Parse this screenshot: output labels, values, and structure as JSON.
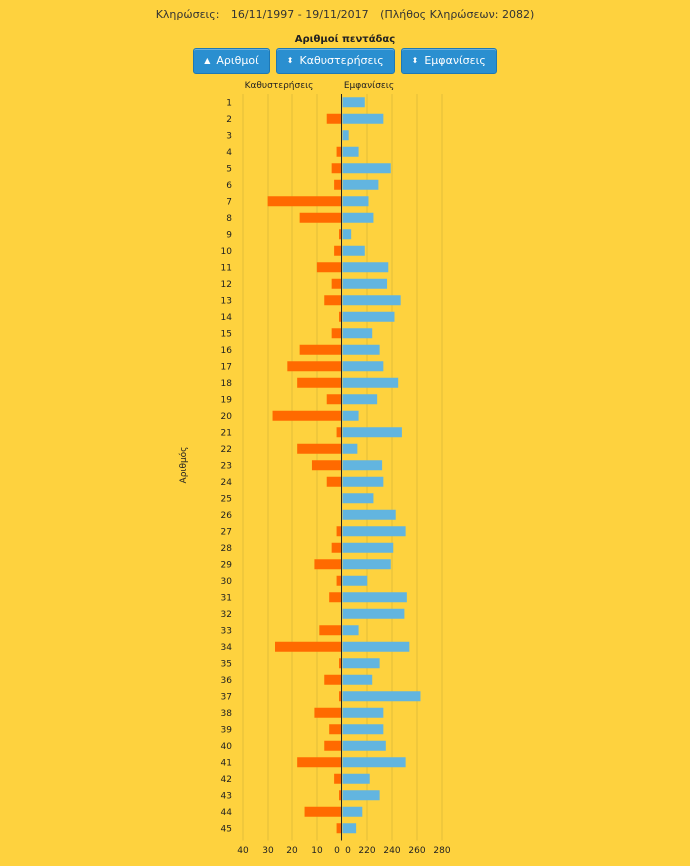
{
  "header": {
    "draws_label": "Κληρώσεις:",
    "date_range": "16/11/1997 - 19/11/2017",
    "total": "(Πλήθος Κληρώσεων: 2082)"
  },
  "buttons": [
    {
      "label": "Αριθμοί",
      "icon": "sort-up-icon"
    },
    {
      "label": "Καθυστερήσεις",
      "icon": "sort-both-icon"
    },
    {
      "label": "Εμφανίσεις",
      "icon": "sort-both-icon"
    }
  ],
  "colors": {
    "delays": "#ff6a00",
    "appearances": "#62b5e0",
    "background": "#fed23e",
    "grid": "#e3bd3b"
  },
  "chart_data": {
    "type": "bar",
    "title": "Αριθμοί πεντάδας",
    "ylabel": "Αριθμός",
    "left_axis_label": "Καθυστερήσεις",
    "right_axis_label": "Εμφανίσεις",
    "left_ticks": [
      "40",
      "30",
      "20",
      "10",
      "0"
    ],
    "right_ticks": [
      "0",
      "220",
      "240",
      "260",
      "280"
    ],
    "grid": true,
    "categories": [
      "1",
      "2",
      "3",
      "4",
      "5",
      "6",
      "7",
      "8",
      "9",
      "10",
      "11",
      "12",
      "13",
      "14",
      "15",
      "16",
      "17",
      "18",
      "19",
      "20",
      "21",
      "22",
      "23",
      "24",
      "25",
      "26",
      "27",
      "28",
      "29",
      "30",
      "31",
      "32",
      "33",
      "34",
      "35",
      "36",
      "37",
      "38",
      "39",
      "40",
      "41",
      "42",
      "43",
      "44",
      "45"
    ],
    "series": [
      {
        "name": "Καθυστερήσεις",
        "values": [
          0,
          6,
          0,
          2,
          4,
          3,
          30,
          17,
          1,
          3,
          10,
          4,
          7,
          1,
          4,
          17,
          22,
          18,
          6,
          28,
          2,
          18,
          12,
          6,
          0,
          0,
          2,
          4,
          11,
          2,
          5,
          0,
          9,
          27,
          1,
          7,
          1,
          11,
          5,
          7,
          18,
          3,
          1,
          15,
          2
        ]
      },
      {
        "name": "Εμφανίσεις",
        "values": [
          218,
          233,
          205,
          213,
          239,
          229,
          221,
          225,
          207,
          218,
          237,
          236,
          247,
          242,
          224,
          230,
          233,
          245,
          228,
          213,
          248,
          212,
          232,
          233,
          225,
          243,
          251,
          241,
          239,
          220,
          252,
          250,
          213,
          254,
          230,
          224,
          263,
          233,
          233,
          235,
          251,
          222,
          230,
          216,
          211
        ]
      }
    ]
  }
}
